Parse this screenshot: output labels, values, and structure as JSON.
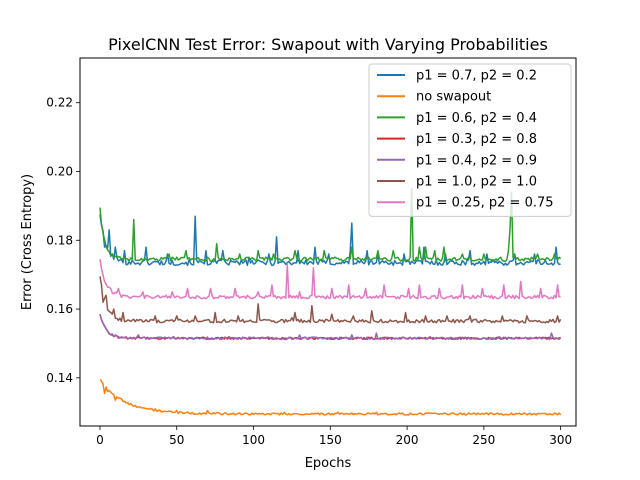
{
  "chart_data": {
    "type": "line",
    "title": "PixelCNN Test Error: Swapout with Varying Probabilities",
    "xlabel": "Epochs",
    "ylabel": "Error (Cross Entropy)",
    "xlim": [
      -13,
      310
    ],
    "ylim": [
      0.126,
      0.233
    ],
    "xticks": [
      0,
      50,
      100,
      150,
      200,
      250,
      300
    ],
    "xtick_labels": [
      "0",
      "50",
      "100",
      "150",
      "200",
      "250",
      "300"
    ],
    "yticks": [
      0.14,
      0.16,
      0.18,
      0.2,
      0.22
    ],
    "ytick_labels": [
      "0.14",
      "0.16",
      "0.18",
      "0.20",
      "0.22"
    ],
    "grid": false,
    "legend_position": "top-right",
    "x_max": 300,
    "series": [
      {
        "name": "p1 = 0.7, p2 = 0.2",
        "color": "#1f77b4",
        "start": 0.1875,
        "floor": 0.1735,
        "noise": 0.0008,
        "decay": 4,
        "spikes": [
          [
            3,
            0.178
          ],
          [
            6,
            0.183
          ],
          [
            10,
            0.178
          ],
          [
            16,
            0.177
          ],
          [
            30,
            0.178
          ],
          [
            44,
            0.176
          ],
          [
            62,
            0.187
          ],
          [
            69,
            0.177
          ],
          [
            80,
            0.177
          ],
          [
            97,
            0.175
          ],
          [
            110,
            0.176
          ],
          [
            115,
            0.181
          ],
          [
            129,
            0.177
          ],
          [
            140,
            0.178
          ],
          [
            149,
            0.176
          ],
          [
            163,
            0.177
          ],
          [
            164,
            0.185
          ],
          [
            174,
            0.177
          ],
          [
            181,
            0.176
          ],
          [
            198,
            0.176
          ],
          [
            211,
            0.178
          ],
          [
            225,
            0.176
          ],
          [
            241,
            0.177
          ],
          [
            252,
            0.176
          ],
          [
            270,
            0.176
          ],
          [
            283,
            0.176
          ],
          [
            297,
            0.178
          ]
        ]
      },
      {
        "name": "no swapout",
        "color": "#ff7f0e",
        "start": 0.1395,
        "floor": 0.1295,
        "noise": 0.0003,
        "decay": 16,
        "spikes": [
          [
            3,
            0.1355
          ],
          [
            5,
            0.136
          ],
          [
            10,
            0.1335
          ],
          [
            20,
            0.1325
          ],
          [
            36,
            0.131
          ],
          [
            50,
            0.1305
          ],
          [
            70,
            0.1305
          ],
          [
            120,
            0.13
          ],
          [
            155,
            0.13
          ],
          [
            180,
            0.13
          ],
          [
            230,
            0.1298
          ],
          [
            280,
            0.1297
          ]
        ]
      },
      {
        "name": "p1 = 0.6, p2 = 0.4",
        "color": "#2ca02c",
        "start": 0.1895,
        "floor": 0.1745,
        "noise": 0.0006,
        "decay": 3,
        "spikes": [
          [
            22,
            0.186
          ],
          [
            45,
            0.176
          ],
          [
            56,
            0.177
          ],
          [
            76,
            0.179
          ],
          [
            91,
            0.176
          ],
          [
            103,
            0.177
          ],
          [
            113,
            0.176
          ],
          [
            127,
            0.177
          ],
          [
            146,
            0.177
          ],
          [
            164,
            0.178
          ],
          [
            181,
            0.177
          ],
          [
            191,
            0.177
          ],
          [
            203,
            0.195
          ],
          [
            208,
            0.178
          ],
          [
            212,
            0.178
          ],
          [
            218,
            0.177
          ],
          [
            224,
            0.178
          ],
          [
            236,
            0.176
          ],
          [
            250,
            0.176
          ],
          [
            266,
            0.177
          ],
          [
            267,
            0.183
          ],
          [
            268,
            0.194
          ],
          [
            270,
            0.176
          ],
          [
            285,
            0.176
          ],
          [
            296,
            0.176
          ]
        ]
      },
      {
        "name": "p1 = 0.3, p2 = 0.8",
        "color": "#d62728",
        "start": 0.1585,
        "floor": 0.1515,
        "noise": 0.0003,
        "decay": 4,
        "spikes": []
      },
      {
        "name": "p1 = 0.4, p2 = 0.9",
        "color": "#9467bd",
        "start": 0.1585,
        "floor": 0.1515,
        "noise": 0.00035,
        "decay": 4,
        "spikes": [
          [
            10,
            0.1525
          ],
          [
            25,
            0.1525
          ],
          [
            48,
            0.152
          ],
          [
            84,
            0.152
          ],
          [
            130,
            0.1525
          ],
          [
            164,
            0.1525
          ],
          [
            180,
            0.153
          ],
          [
            215,
            0.152
          ],
          [
            260,
            0.152
          ],
          [
            294,
            0.153
          ]
        ]
      },
      {
        "name": "p1 = 1.0, p2 = 1.0",
        "color": "#8c564b",
        "start": 0.1695,
        "floor": 0.1565,
        "noise": 0.0005,
        "decay": 4,
        "spikes": [
          [
            2,
            0.162
          ],
          [
            4,
            0.164
          ],
          [
            9,
            0.16
          ],
          [
            15,
            0.159
          ],
          [
            36,
            0.158
          ],
          [
            50,
            0.158
          ],
          [
            62,
            0.158
          ],
          [
            75,
            0.159
          ],
          [
            90,
            0.158
          ],
          [
            103,
            0.1615
          ],
          [
            125,
            0.1575
          ],
          [
            127,
            0.159
          ],
          [
            138,
            0.161
          ],
          [
            151,
            0.1585
          ],
          [
            165,
            0.158
          ],
          [
            177,
            0.1595
          ],
          [
            199,
            0.159
          ],
          [
            212,
            0.158
          ],
          [
            226,
            0.158
          ],
          [
            241,
            0.158
          ],
          [
            262,
            0.158
          ],
          [
            278,
            0.158
          ],
          [
            298,
            0.158
          ]
        ]
      },
      {
        "name": "p1 = 0.25, p2 = 0.75",
        "color": "#e377c2",
        "start": 0.1745,
        "floor": 0.1635,
        "noise": 0.0005,
        "decay": 4,
        "spikes": [
          [
            3,
            0.168
          ],
          [
            7,
            0.166
          ],
          [
            12,
            0.166
          ],
          [
            28,
            0.165
          ],
          [
            47,
            0.165
          ],
          [
            57,
            0.166
          ],
          [
            72,
            0.166
          ],
          [
            88,
            0.166
          ],
          [
            103,
            0.165
          ],
          [
            112,
            0.167
          ],
          [
            122,
            0.173
          ],
          [
            130,
            0.165
          ],
          [
            139,
            0.172
          ],
          [
            151,
            0.166
          ],
          [
            162,
            0.167
          ],
          [
            173,
            0.166
          ],
          [
            185,
            0.167
          ],
          [
            201,
            0.166
          ],
          [
            208,
            0.167
          ],
          [
            221,
            0.166
          ],
          [
            236,
            0.167
          ],
          [
            249,
            0.166
          ],
          [
            263,
            0.167
          ],
          [
            274,
            0.168
          ],
          [
            287,
            0.166
          ],
          [
            298,
            0.167
          ]
        ]
      }
    ]
  }
}
